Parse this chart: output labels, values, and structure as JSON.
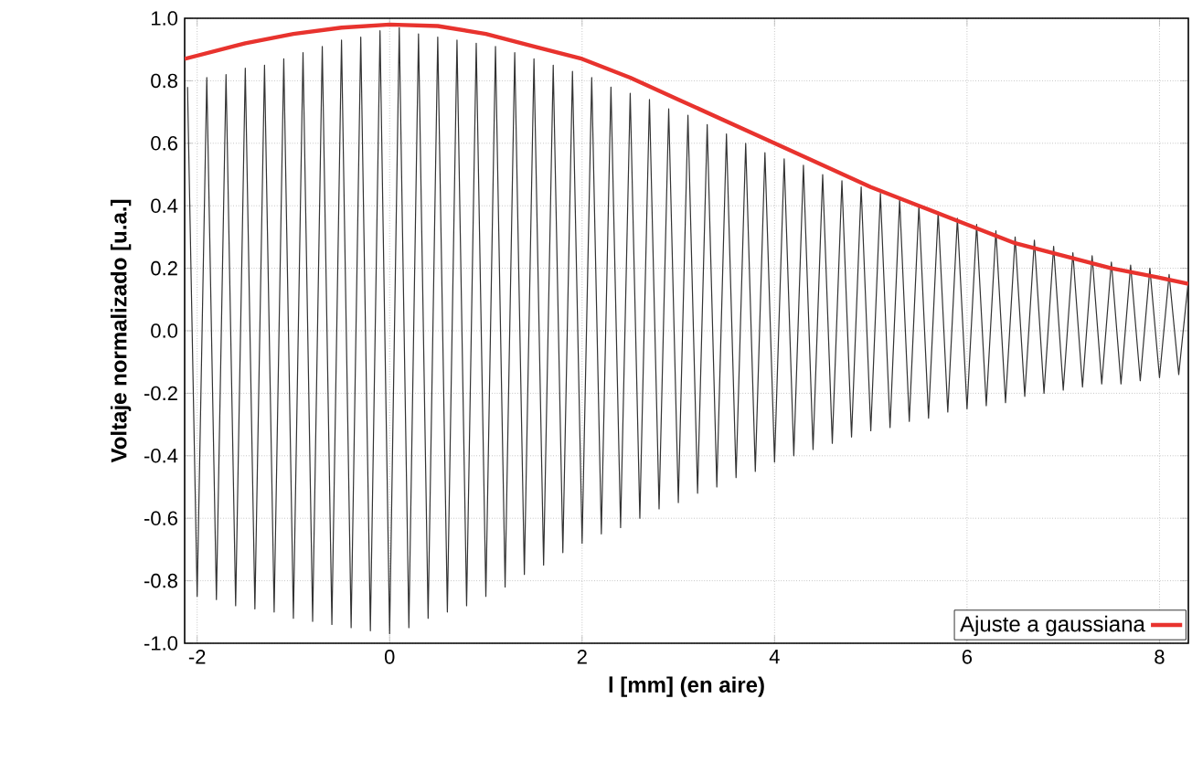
{
  "chart_data": {
    "type": "line",
    "xlabel": "l [mm] (en aire)",
    "ylabel": "Voltaje normalizado [u.a.]",
    "xlim": [
      -2.13,
      8.3
    ],
    "ylim": [
      -1.0,
      1.0
    ],
    "xticks": [
      -2,
      0,
      2,
      4,
      6,
      8
    ],
    "yticks": [
      {
        "value": -1.0,
        "label": "-1.0"
      },
      -0.8,
      -0.6,
      -0.4,
      -0.2,
      {
        "value": 0.0,
        "label": "0.0"
      },
      0.2,
      0.4,
      0.6,
      0.8,
      {
        "value": 1.0,
        "label": "1.0"
      }
    ],
    "grid": true,
    "legend": "bottom right",
    "marker": "none",
    "line_style": "solid",
    "series": [
      {
        "color": "#333333",
        "x": [
          -2.1,
          -2.0,
          -1.9,
          -1.8,
          -1.7,
          -1.6,
          -1.5,
          -1.4,
          -1.3,
          -1.2,
          -1.1,
          -1.0,
          -0.9,
          -0.8,
          -0.7,
          -0.6,
          -0.5,
          -0.4,
          -0.3,
          -0.2,
          -0.1,
          0.0,
          0.1,
          0.2,
          0.3,
          0.4,
          0.5,
          0.6,
          0.7,
          0.8,
          0.9,
          1.0,
          1.1,
          1.2,
          1.3,
          1.4,
          1.5,
          1.6,
          1.7,
          1.8,
          1.9,
          2.0,
          2.1,
          2.2,
          2.3,
          2.4,
          2.5,
          2.6,
          2.7,
          2.8,
          2.9,
          3.0,
          3.1,
          3.2,
          3.3,
          3.4,
          3.5,
          3.6,
          3.7,
          3.8,
          3.9,
          4.0,
          4.1,
          4.2,
          4.3,
          4.4,
          4.5,
          4.6,
          4.7,
          4.8,
          4.9,
          5.0,
          5.1,
          5.2,
          5.3,
          5.4,
          5.5,
          5.6,
          5.7,
          5.8,
          5.9,
          6.0,
          6.1,
          6.2,
          6.3,
          6.4,
          6.5,
          6.6,
          6.7,
          6.8,
          6.9,
          7.0,
          7.1,
          7.2,
          7.3,
          7.4,
          7.5,
          7.6,
          7.7,
          7.8,
          7.9,
          8.0,
          8.1,
          8.2,
          8.3
        ],
        "values": [
          0.78,
          -0.85,
          0.81,
          -0.86,
          0.82,
          -0.88,
          0.84,
          -0.89,
          0.85,
          -0.9,
          0.87,
          -0.92,
          0.89,
          -0.93,
          0.91,
          -0.94,
          0.93,
          -0.95,
          0.94,
          -0.96,
          0.96,
          -0.97,
          0.97,
          -0.95,
          0.95,
          -0.92,
          0.94,
          -0.9,
          0.93,
          -0.88,
          0.92,
          -0.85,
          0.91,
          -0.82,
          0.89,
          -0.78,
          0.87,
          -0.75,
          0.85,
          -0.71,
          0.83,
          -0.68,
          0.81,
          -0.65,
          0.78,
          -0.63,
          0.76,
          -0.6,
          0.74,
          -0.57,
          0.71,
          -0.55,
          0.69,
          -0.52,
          0.66,
          -0.5,
          0.63,
          -0.47,
          0.6,
          -0.45,
          0.57,
          -0.42,
          0.55,
          -0.4,
          0.53,
          -0.38,
          0.5,
          -0.36,
          0.48,
          -0.34,
          0.46,
          -0.32,
          0.44,
          -0.31,
          0.42,
          -0.29,
          0.4,
          -0.28,
          0.38,
          -0.26,
          0.36,
          -0.25,
          0.34,
          -0.24,
          0.32,
          -0.23,
          0.3,
          -0.21,
          0.29,
          -0.2,
          0.27,
          -0.19,
          0.25,
          -0.18,
          0.24,
          -0.17,
          0.22,
          -0.17,
          0.21,
          -0.16,
          0.2,
          -0.15,
          0.18,
          -0.14,
          0.16
        ]
      },
      {
        "name": "Ajuste a gaussiana",
        "color": "#e8332e",
        "x": [
          -2.13,
          -1.5,
          -1.0,
          -0.5,
          0.0,
          0.5,
          1.0,
          1.5,
          2.0,
          2.5,
          3.0,
          3.5,
          4.0,
          4.5,
          5.0,
          5.5,
          6.0,
          6.5,
          7.0,
          7.5,
          8.0,
          8.3
        ],
        "values": [
          0.87,
          0.92,
          0.95,
          0.97,
          0.98,
          0.975,
          0.95,
          0.91,
          0.87,
          0.81,
          0.74,
          0.67,
          0.6,
          0.53,
          0.46,
          0.4,
          0.34,
          0.28,
          0.24,
          0.2,
          0.17,
          0.15
        ]
      }
    ]
  }
}
